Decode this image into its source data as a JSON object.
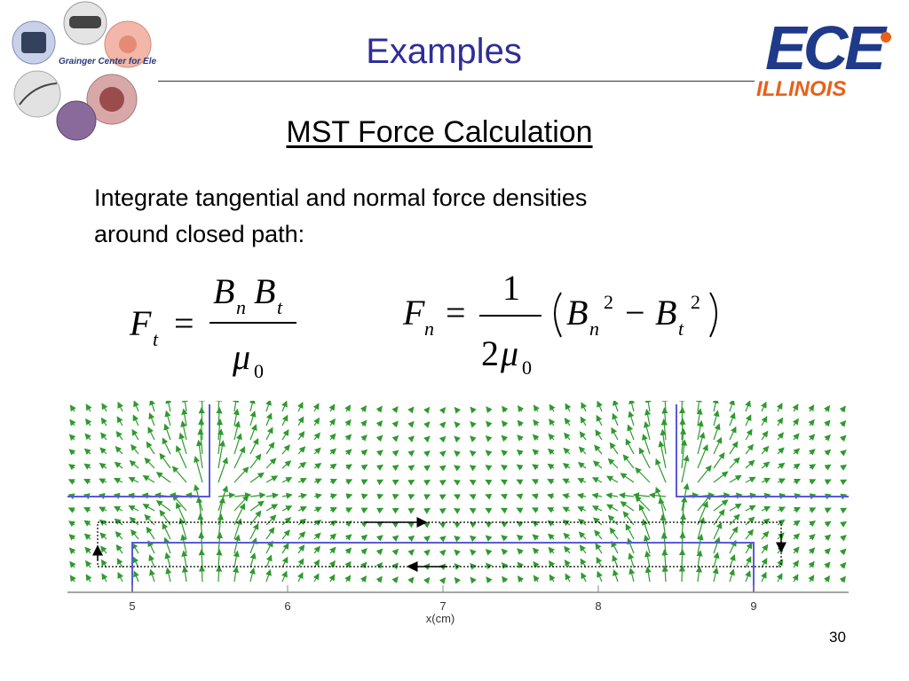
{
  "slide": {
    "title": "Examples",
    "subtitle": "MST Force Calculation",
    "body_line1": "Integrate tangential and normal force densities",
    "body_line2": "around closed path:",
    "page_number": "30"
  },
  "logos": {
    "left_logo_name": "Grainger Center for Electric Machinery and Electromechanics",
    "right_logo_text_top": "ECE",
    "right_logo_text_bottom": "ILLINOIS",
    "right_logo_color_primary": "#1f3a8a",
    "right_logo_color_accent": "#e8601c"
  },
  "equations": {
    "tangential": {
      "lhs": "F",
      "lhs_sub": "t",
      "num_1": "B",
      "num_1_sub": "n",
      "num_2": "B",
      "num_2_sub": "t",
      "den": "μ",
      "den_sub": "0"
    },
    "normal": {
      "lhs": "F",
      "lhs_sub": "n",
      "num": "1",
      "den_coeff": "2",
      "den": "μ",
      "den_sub": "0",
      "term1": "B",
      "term1_sub": "n",
      "term1_sup": "2",
      "term2": "B",
      "term2_sub": "t",
      "term2_sup": "2"
    }
  },
  "figure": {
    "x_axis_label": "x(cm)",
    "x_ticks": [
      "5",
      "6",
      "7",
      "8",
      "9"
    ],
    "arrow_color": "#2f9a2f",
    "boundary_color": "#5a5ad6"
  }
}
